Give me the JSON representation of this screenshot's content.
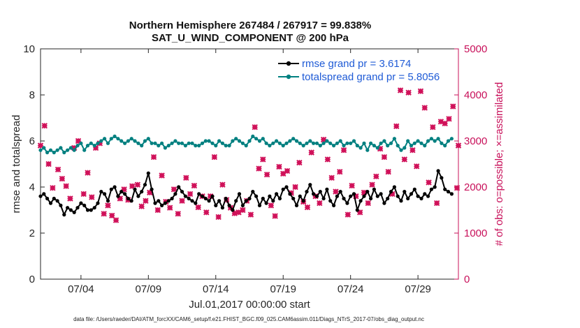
{
  "chart_data": {
    "type": "line",
    "title": "Northern Hemisphere 267484 / 267917 = 99.838%",
    "subtitle": "SAT_U_WIND_COMPONENT @ 200 hPa",
    "ylabel": "rmse and totalspread",
    "ylabel_right": "# of obs: o=possible; ×=assimilated",
    "xlabel": "Jul.01,2017 00:00:00 start",
    "footnote": "data file: /Users/raeder/DAI/ATM_forcXX/CAM6_setup/f.e21.FHIST_BGC.f09_025.CAM6assim.011/Diags_NTrS_2017-07/obs_diag_output.nc",
    "ylim": [
      0,
      10
    ],
    "ylim_right": [
      0,
      5000
    ],
    "xlim": [
      1,
      32
    ],
    "left_ticks": [
      "0",
      "2",
      "4",
      "6",
      "8",
      "10"
    ],
    "right_ticks": [
      "0",
      "1000",
      "2000",
      "3000",
      "4000",
      "5000"
    ],
    "x_ticks": [
      {
        "x": 4,
        "label": "07/04"
      },
      {
        "x": 9,
        "label": "07/09"
      },
      {
        "x": 14,
        "label": "07/14"
      },
      {
        "x": 19,
        "label": "07/19"
      },
      {
        "x": 24,
        "label": "07/24"
      },
      {
        "x": 29,
        "label": "07/29"
      }
    ],
    "legend": [
      {
        "name": "rmse",
        "label": "rmse grand pr = 3.6174"
      },
      {
        "name": "totalspread",
        "label": "totalspread grand pr = 5.8056"
      }
    ],
    "colors": {
      "rmse": "#000000",
      "totalspread": "#008080",
      "obs": "#d0125a",
      "axis_right": "#c8105a",
      "legend_text": "#1f5bd6"
    },
    "series": [
      {
        "name": "rmse",
        "x_start": 1,
        "x_step": 0.25,
        "values": [
          3.6,
          3.7,
          3.5,
          3.3,
          3.5,
          3.4,
          3.2,
          2.8,
          3.1,
          3.0,
          2.9,
          3.1,
          3.3,
          3.2,
          3.0,
          3.0,
          3.1,
          3.3,
          3.8,
          3.7,
          3.4,
          3.9,
          4.0,
          3.6,
          3.8,
          3.7,
          3.5,
          3.4,
          3.9,
          3.6,
          3.8,
          4.1,
          4.6,
          3.9,
          3.3,
          3.4,
          3.2,
          3.3,
          3.4,
          3.5,
          3.7,
          4.0,
          3.8,
          3.6,
          3.5,
          3.4,
          3.3,
          3.7,
          3.6,
          3.5,
          3.4,
          3.6,
          3.2,
          3.4,
          3.1,
          3.5,
          3.2,
          3.0,
          3.4,
          3.7,
          3.2,
          3.4,
          3.5,
          3.8,
          3.6,
          3.2,
          3.5,
          3.3,
          3.6,
          3.4,
          3.7,
          3.5,
          3.9,
          4.0,
          3.7,
          3.5,
          3.2,
          3.6,
          3.4,
          3.8,
          4.1,
          3.7,
          3.6,
          3.8,
          3.5,
          3.9,
          3.4,
          3.2,
          3.6,
          3.8,
          3.5,
          3.3,
          3.6,
          3.7,
          3.0,
          3.4,
          3.6,
          3.8,
          3.5,
          3.9,
          3.6,
          3.7,
          3.3,
          3.5,
          3.8,
          4.0,
          3.6,
          3.4,
          3.8,
          3.5,
          3.7,
          3.9,
          3.6,
          3.5,
          3.7,
          3.6,
          3.9,
          4.0,
          4.7,
          4.4,
          3.9,
          3.8,
          3.7
        ]
      },
      {
        "name": "totalspread",
        "x_start": 1,
        "x_step": 0.25,
        "values": [
          5.6,
          5.7,
          5.5,
          5.6,
          5.5,
          5.6,
          5.7,
          5.5,
          5.6,
          5.7,
          5.6,
          5.8,
          5.9,
          5.6,
          5.8,
          5.9,
          5.8,
          5.9,
          6.0,
          6.1,
          5.9,
          6.1,
          6.2,
          6.1,
          6.0,
          5.9,
          6.0,
          6.1,
          6.0,
          5.9,
          5.8,
          6.0,
          6.1,
          5.9,
          5.9,
          5.8,
          5.9,
          5.7,
          5.8,
          5.9,
          6.0,
          5.9,
          5.9,
          5.8,
          5.9,
          5.9,
          5.8,
          5.8,
          5.9,
          6.0,
          6.0,
          5.9,
          5.8,
          6.0,
          5.9,
          5.8,
          5.8,
          6.0,
          6.1,
          6.0,
          5.9,
          5.8,
          6.0,
          6.2,
          6.1,
          6.0,
          6.1,
          5.9,
          5.8,
          5.9,
          6.0,
          5.9,
          5.8,
          5.9,
          6.0,
          6.1,
          6.0,
          5.9,
          5.8,
          5.9,
          6.0,
          5.9,
          5.9,
          5.8,
          5.9,
          6.0,
          5.9,
          5.8,
          5.9,
          6.0,
          5.8,
          5.9,
          5.9,
          6.0,
          5.8,
          5.7,
          5.9,
          5.6,
          5.9,
          5.8,
          5.7,
          5.9,
          6.0,
          5.8,
          5.9,
          6.1,
          5.8,
          5.6,
          5.7,
          6.0,
          5.8,
          5.9,
          6.0,
          5.9,
          5.8,
          6.0,
          6.1,
          6.0,
          6.1,
          5.9,
          5.8,
          6.0,
          6.1
        ]
      },
      {
        "name": "obs_assimilated",
        "axis": "right",
        "points": [
          [
            1.0,
            2900
          ],
          [
            1.3,
            3330
          ],
          [
            1.6,
            2500
          ],
          [
            1.9,
            1980
          ],
          [
            2.3,
            2380
          ],
          [
            2.6,
            2180
          ],
          [
            2.9,
            2020
          ],
          [
            3.2,
            1750
          ],
          [
            3.5,
            2850
          ],
          [
            3.8,
            3000
          ],
          [
            4.2,
            1850
          ],
          [
            4.5,
            2310
          ],
          [
            4.8,
            1780
          ],
          [
            5.1,
            2850
          ],
          [
            5.4,
            2950
          ],
          [
            5.7,
            1420
          ],
          [
            6.0,
            1600
          ],
          [
            6.3,
            1380
          ],
          [
            6.6,
            1280
          ],
          [
            6.9,
            1750
          ],
          [
            7.2,
            1950
          ],
          [
            7.5,
            1720
          ],
          [
            7.8,
            2020
          ],
          [
            8.2,
            2050
          ],
          [
            8.5,
            1580
          ],
          [
            8.8,
            1700
          ],
          [
            9.1,
            1880
          ],
          [
            9.4,
            2650
          ],
          [
            9.7,
            1500
          ],
          [
            10.0,
            2250
          ],
          [
            10.3,
            1680
          ],
          [
            10.6,
            1550
          ],
          [
            10.9,
            1950
          ],
          [
            11.2,
            1420
          ],
          [
            11.5,
            1700
          ],
          [
            11.8,
            2200
          ],
          [
            12.1,
            1850
          ],
          [
            12.4,
            2030
          ],
          [
            12.7,
            1560
          ],
          [
            13.0,
            1800
          ],
          [
            13.3,
            1450
          ],
          [
            13.6,
            1800
          ],
          [
            13.9,
            2650
          ],
          [
            14.2,
            1350
          ],
          [
            14.5,
            2050
          ],
          [
            14.8,
            1720
          ],
          [
            15.1,
            1550
          ],
          [
            15.4,
            1430
          ],
          [
            15.7,
            1450
          ],
          [
            16.0,
            1500
          ],
          [
            16.3,
            1700
          ],
          [
            16.6,
            1400
          ],
          [
            16.9,
            3300
          ],
          [
            17.2,
            2400
          ],
          [
            17.5,
            2600
          ],
          [
            17.8,
            2270
          ],
          [
            18.1,
            1600
          ],
          [
            18.4,
            1370
          ],
          [
            18.7,
            2440
          ],
          [
            19.0,
            2290
          ],
          [
            19.3,
            2350
          ],
          [
            19.6,
            1870
          ],
          [
            19.9,
            2000
          ],
          [
            20.2,
            2530
          ],
          [
            20.5,
            1680
          ],
          [
            20.8,
            1560
          ],
          [
            21.1,
            2750
          ],
          [
            21.4,
            1800
          ],
          [
            21.7,
            1650
          ],
          [
            22.0,
            3030
          ],
          [
            22.3,
            2600
          ],
          [
            22.6,
            2200
          ],
          [
            22.9,
            1900
          ],
          [
            23.2,
            2330
          ],
          [
            23.5,
            2800
          ],
          [
            23.8,
            1400
          ],
          [
            24.1,
            2030
          ],
          [
            24.4,
            1800
          ],
          [
            24.7,
            1450
          ],
          [
            25.0,
            1880
          ],
          [
            25.3,
            1650
          ],
          [
            25.6,
            2050
          ],
          [
            25.9,
            2230
          ],
          [
            26.2,
            2830
          ],
          [
            26.5,
            2650
          ],
          [
            26.8,
            2330
          ],
          [
            27.1,
            1850
          ],
          [
            27.4,
            3320
          ],
          [
            27.7,
            4100
          ],
          [
            28.0,
            2600
          ],
          [
            28.3,
            4050
          ],
          [
            28.6,
            2800
          ],
          [
            28.9,
            2450
          ],
          [
            29.2,
            4080
          ],
          [
            29.5,
            3720
          ],
          [
            29.8,
            2100
          ],
          [
            30.1,
            3300
          ],
          [
            30.4,
            1650
          ],
          [
            30.7,
            3420
          ],
          [
            31.0,
            3380
          ],
          [
            31.3,
            3480
          ],
          [
            31.6,
            3750
          ],
          [
            31.9,
            1980
          ],
          [
            32.0,
            2900
          ]
        ]
      }
    ]
  }
}
